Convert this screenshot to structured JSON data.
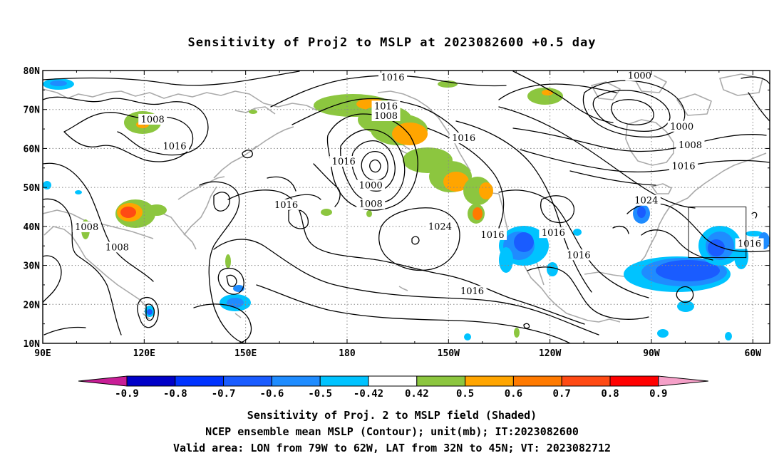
{
  "title": "Sensitivity of Proj2 to MSLP at 2023082600 +0.5 day",
  "map": {
    "lat_labels": [
      "80N",
      "70N",
      "60N",
      "50N",
      "40N",
      "30N",
      "20N",
      "10N"
    ],
    "lon_labels": [
      "90E",
      "120E",
      "150E",
      "180",
      "150W",
      "120W",
      "90W",
      "60W"
    ],
    "contour_labels": [
      {
        "text": "1016",
        "lon": -166.5,
        "lat": 78.2
      },
      {
        "text": "1000",
        "lon": -93.5,
        "lat": 78.6
      },
      {
        "text": "1016",
        "lon": -168.5,
        "lat": 70.8
      },
      {
        "text": "1008",
        "lon": -168.5,
        "lat": 68.3
      },
      {
        "text": "1008",
        "lon": 122.5,
        "lat": 67.4
      },
      {
        "text": "1000",
        "lon": -81,
        "lat": 65.6
      },
      {
        "text": "1016",
        "lon": -145.5,
        "lat": 62.6
      },
      {
        "text": "1008",
        "lon": -78.5,
        "lat": 60.8
      },
      {
        "text": "1016",
        "lon": 129,
        "lat": 60.5
      },
      {
        "text": "1016",
        "lon": 179,
        "lat": 56.6
      },
      {
        "text": "1016",
        "lon": -80.5,
        "lat": 55.4
      },
      {
        "text": "1000",
        "lon": -173,
        "lat": 50.5
      },
      {
        "text": "1024",
        "lon": -91.5,
        "lat": 46.6
      },
      {
        "text": "1008",
        "lon": -173,
        "lat": 45.7
      },
      {
        "text": "1016",
        "lon": 162,
        "lat": 45.5
      },
      {
        "text": "1008",
        "lon": 103,
        "lat": 39.8
      },
      {
        "text": "1024",
        "lon": -152.5,
        "lat": 39.9
      },
      {
        "text": "1016",
        "lon": -137,
        "lat": 37.8
      },
      {
        "text": "1016",
        "lon": -119,
        "lat": 38.3
      },
      {
        "text": "1008",
        "lon": 112,
        "lat": 34.6
      },
      {
        "text": "1016",
        "lon": -61,
        "lat": 35.5
      },
      {
        "text": "1016",
        "lon": -111.5,
        "lat": 32.6
      },
      {
        "text": "1016",
        "lon": -143,
        "lat": 23.3
      }
    ],
    "valid_area": {
      "lon": [
        -79,
        -62
      ],
      "lat": [
        32,
        45
      ]
    },
    "positive_color": "#8cc63f",
    "negative_color": "#1e6bff"
  },
  "colorbar": {
    "labels": [
      "-0.9",
      "-0.8",
      "-0.7",
      "-0.6",
      "-0.5",
      "-0.42",
      "0.42",
      "0.5",
      "0.6",
      "0.7",
      "0.8",
      "0.9"
    ],
    "colors": [
      "#0000c8",
      "#0033ff",
      "#1a5cff",
      "#1f8cff",
      "#00c3ff",
      "#ffffff",
      "#8cc63f",
      "#ffa500",
      "#ff7a00",
      "#ff4a14",
      "#ff0000"
    ],
    "low_arrow_color": "#c81e96",
    "high_arrow_color": "#f5a0c8"
  },
  "captions": [
    "Sensitivity of Proj. 2 to MSLP field (Shaded)",
    "NCEP ensemble mean MSLP (Contour); unit(mb); IT:2023082600",
    "Valid area: LON from 79W to 62W, LAT from 32N to 45N; VT: 2023082712"
  ]
}
